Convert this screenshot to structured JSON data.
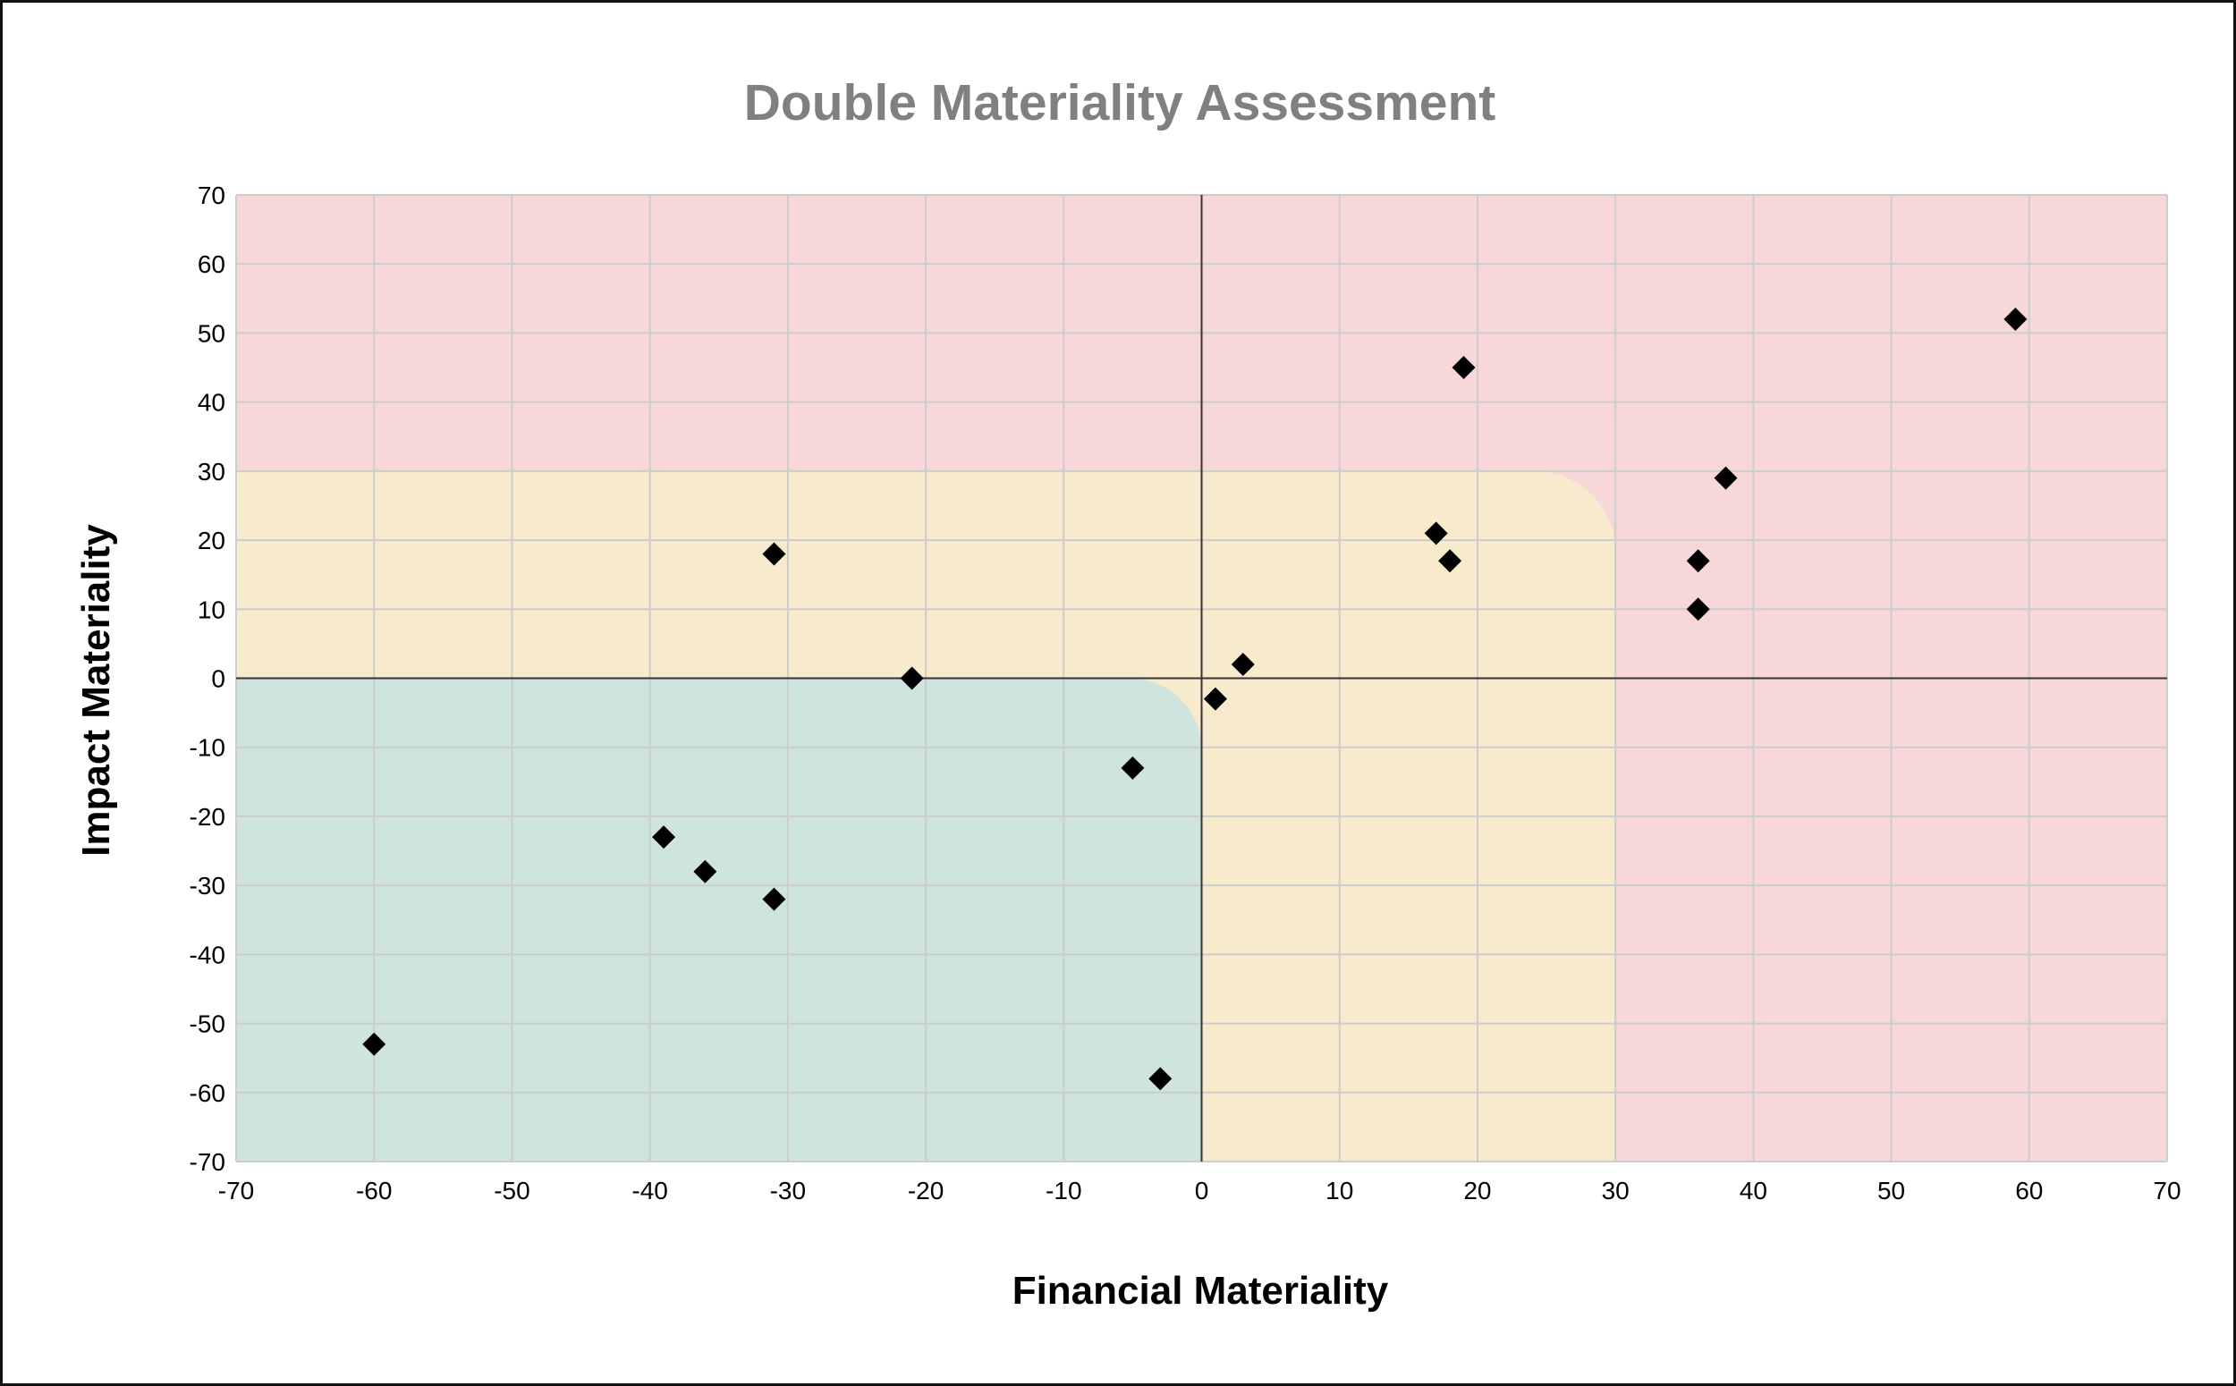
{
  "chart_data": {
    "type": "scatter",
    "title": "Double Materiality Assessment",
    "xlabel": "Financial Materiality",
    "ylabel": "Impact Materiality",
    "xlim": [
      -70,
      70
    ],
    "ylim": [
      -70,
      70
    ],
    "x_ticks": [
      -70,
      -60,
      -50,
      -40,
      -30,
      -20,
      -10,
      0,
      10,
      20,
      30,
      40,
      50,
      60,
      70
    ],
    "y_ticks": [
      -70,
      -60,
      -50,
      -40,
      -30,
      -20,
      -10,
      0,
      10,
      20,
      30,
      40,
      50,
      60,
      70
    ],
    "grid": true,
    "legend": "none",
    "marker": "diamond",
    "marker_color": "#000000",
    "zones": {
      "high": "#f8d7d9",
      "medium": "#f8eacd",
      "low": "#cfe4de"
    },
    "points": [
      {
        "x": 59,
        "y": 52
      },
      {
        "x": 19,
        "y": 45
      },
      {
        "x": 38,
        "y": 29
      },
      {
        "x": 17,
        "y": 21
      },
      {
        "x": 18,
        "y": 17
      },
      {
        "x": 36,
        "y": 17
      },
      {
        "x": 36,
        "y": 10
      },
      {
        "x": 3,
        "y": 2
      },
      {
        "x": 1,
        "y": -3
      },
      {
        "x": -31,
        "y": 18
      },
      {
        "x": -21,
        "y": 0
      },
      {
        "x": -5,
        "y": -13
      },
      {
        "x": -39,
        "y": -23
      },
      {
        "x": -36,
        "y": -28
      },
      {
        "x": -31,
        "y": -32
      },
      {
        "x": -60,
        "y": -53
      },
      {
        "x": -3,
        "y": -58
      }
    ]
  }
}
